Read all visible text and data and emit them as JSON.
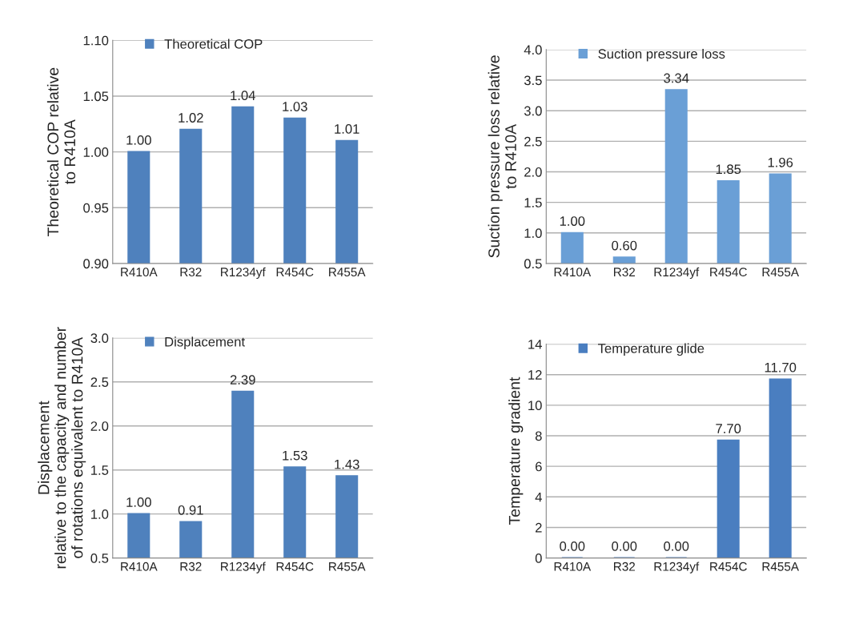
{
  "chart_data": [
    {
      "type": "bar",
      "ylabel": "Theoretical COP relative\nto R410A",
      "categories": [
        "R410A",
        "R32",
        "R1234yf",
        "R454C",
        "R455A"
      ],
      "series": [
        {
          "name": "Theoretical COP",
          "color": "#4f81bd",
          "values": [
            1.0,
            1.02,
            1.04,
            1.03,
            1.01
          ],
          "value_labels": [
            "1.00",
            "1.02",
            "1.04",
            "1.03",
            "1.01"
          ]
        }
      ],
      "ylim": [
        0.9,
        1.1
      ],
      "yticks": [
        {
          "value": 0.9,
          "label": "0.90"
        },
        {
          "value": 0.95,
          "label": "0.95"
        },
        {
          "value": 1.0,
          "label": "1.00"
        },
        {
          "value": 1.05,
          "label": "1.05"
        },
        {
          "value": 1.1,
          "label": "1.10"
        }
      ],
      "grid": "y",
      "legend": "top left"
    },
    {
      "type": "bar",
      "ylabel": "Suction pressure loss relative\nto R410A",
      "categories": [
        "R410A",
        "R32",
        "R1234yf",
        "R454C",
        "R455A"
      ],
      "series": [
        {
          "name": "Suction pressure loss",
          "color": "#6a9fd6",
          "values": [
            1.0,
            0.6,
            3.34,
            1.85,
            1.96
          ],
          "value_labels": [
            "1.00",
            "0.60",
            "3.34",
            "1.85",
            "1.96"
          ]
        }
      ],
      "ylim": [
        0.5,
        4.0
      ],
      "yticks": [
        {
          "value": 0.5,
          "label": "0.5"
        },
        {
          "value": 1.0,
          "label": "1.0"
        },
        {
          "value": 1.5,
          "label": "1.5"
        },
        {
          "value": 2.0,
          "label": "2.0"
        },
        {
          "value": 2.5,
          "label": "2.5"
        },
        {
          "value": 3.0,
          "label": "3.0"
        },
        {
          "value": 3.5,
          "label": "3.5"
        },
        {
          "value": 4.0,
          "label": "4.0"
        }
      ],
      "grid": "y",
      "legend": "top left"
    },
    {
      "type": "bar",
      "ylabel": "Displacement\nrelative to the capacity and number\nof rotations equivalent to R410A",
      "categories": [
        "R410A",
        "R32",
        "R1234yf",
        "R454C",
        "R455A"
      ],
      "series": [
        {
          "name": "Displacement",
          "color": "#4f81bd",
          "values": [
            1.0,
            0.91,
            2.39,
            1.53,
            1.43
          ],
          "value_labels": [
            "1.00",
            "0.91",
            "2.39",
            "1.53",
            "1.43"
          ]
        }
      ],
      "ylim": [
        0.5,
        3.0
      ],
      "yticks": [
        {
          "value": 0.5,
          "label": "0.5"
        },
        {
          "value": 1.0,
          "label": "1.0"
        },
        {
          "value": 1.5,
          "label": "1.5"
        },
        {
          "value": 2.0,
          "label": "2.0"
        },
        {
          "value": 2.5,
          "label": "2.5"
        },
        {
          "value": 3.0,
          "label": "3.0"
        }
      ],
      "grid": "y",
      "legend": "top left"
    },
    {
      "type": "bar",
      "ylabel": "Temperature gradient",
      "categories": [
        "R410A",
        "R32",
        "R1234yf",
        "R454C",
        "R455A"
      ],
      "series": [
        {
          "name": "Temperature glide",
          "color": "#4a7ec0",
          "values": [
            0.0,
            0.0,
            0.0,
            7.7,
            11.7
          ],
          "value_labels": [
            "0.00",
            "0.00",
            "0.00",
            "7.70",
            "11.70"
          ]
        }
      ],
      "ylim": [
        0,
        14
      ],
      "yticks": [
        0,
        2,
        4,
        6,
        8,
        10,
        12,
        14
      ],
      "grid": "y",
      "legend": "top left"
    }
  ]
}
